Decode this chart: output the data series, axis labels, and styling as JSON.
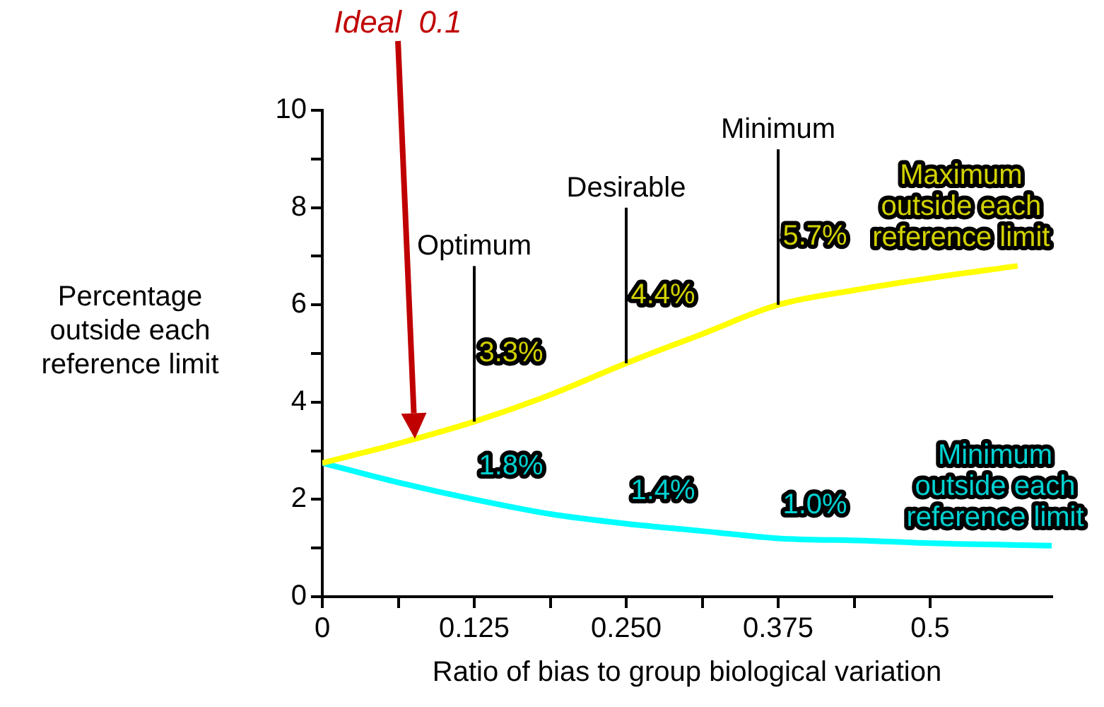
{
  "chart_data": {
    "type": "line",
    "xlabel": "Ratio of bias to group biological variation",
    "ylabel": "Percentage outside each reference limit",
    "xlim": [
      0,
      0.6
    ],
    "ylim": [
      0,
      10
    ],
    "xticks": [
      0,
      {
        "value": 0.0625,
        "label": null
      },
      {
        "value": 0.125,
        "label": "0.125"
      },
      {
        "value": 0.1875,
        "label": null
      },
      {
        "value": 0.25,
        "label": "0.250"
      },
      {
        "value": 0.3125,
        "label": null
      },
      {
        "value": 0.375,
        "label": "0.375"
      },
      {
        "value": 0.4375,
        "label": null
      },
      0.5
    ],
    "yticks": [
      0,
      {
        "value": 1,
        "label": null
      },
      2,
      {
        "value": 3,
        "label": null
      },
      4,
      {
        "value": 5,
        "label": null
      },
      6,
      {
        "value": 7,
        "label": null
      },
      8,
      {
        "value": 9,
        "label": null
      },
      10
    ],
    "marker": "none",
    "line_style": "solid",
    "series": [
      {
        "name": "Maximum outside each reference limit",
        "color": "#ffff00",
        "x": [
          0,
          0.0625,
          0.125,
          0.1875,
          0.25,
          0.3125,
          0.375,
          0.4375,
          0.5,
          0.572
        ],
        "values": [
          2.75,
          3.15,
          3.6,
          4.15,
          4.8,
          5.4,
          6.0,
          6.3,
          6.55,
          6.8
        ]
      },
      {
        "name": "Minimum outside each reference limit",
        "color": "#00ffff",
        "x": [
          0,
          0.0625,
          0.125,
          0.1875,
          0.25,
          0.3125,
          0.375,
          0.45,
          0.5,
          0.6
        ],
        "values": [
          2.75,
          2.35,
          2.0,
          1.7,
          1.5,
          1.35,
          1.2,
          1.15,
          1.1,
          1.05
        ]
      }
    ],
    "ref_lines": [
      {
        "axis": "x",
        "value": 0.125,
        "label": "Optimum"
      },
      {
        "axis": "x",
        "value": 0.25,
        "label": "Desirable"
      },
      {
        "axis": "x",
        "value": 0.375,
        "label": "Minimum"
      }
    ],
    "annotations": [
      "Ideal  0.1",
      {
        "text": "3.3%",
        "x": 0.125,
        "y": 3.6
      },
      {
        "text": "4.4%",
        "x": 0.25,
        "y": 4.8
      },
      {
        "text": "5.7%",
        "x": 0.375,
        "y": 6.0
      },
      {
        "text": "1.8%",
        "x": 0.125,
        "y": 2.0
      },
      {
        "text": "1.4%",
        "x": 0.25,
        "y": 1.5
      },
      {
        "text": "1.0%",
        "x": 0.375,
        "y": 1.2
      }
    ]
  }
}
